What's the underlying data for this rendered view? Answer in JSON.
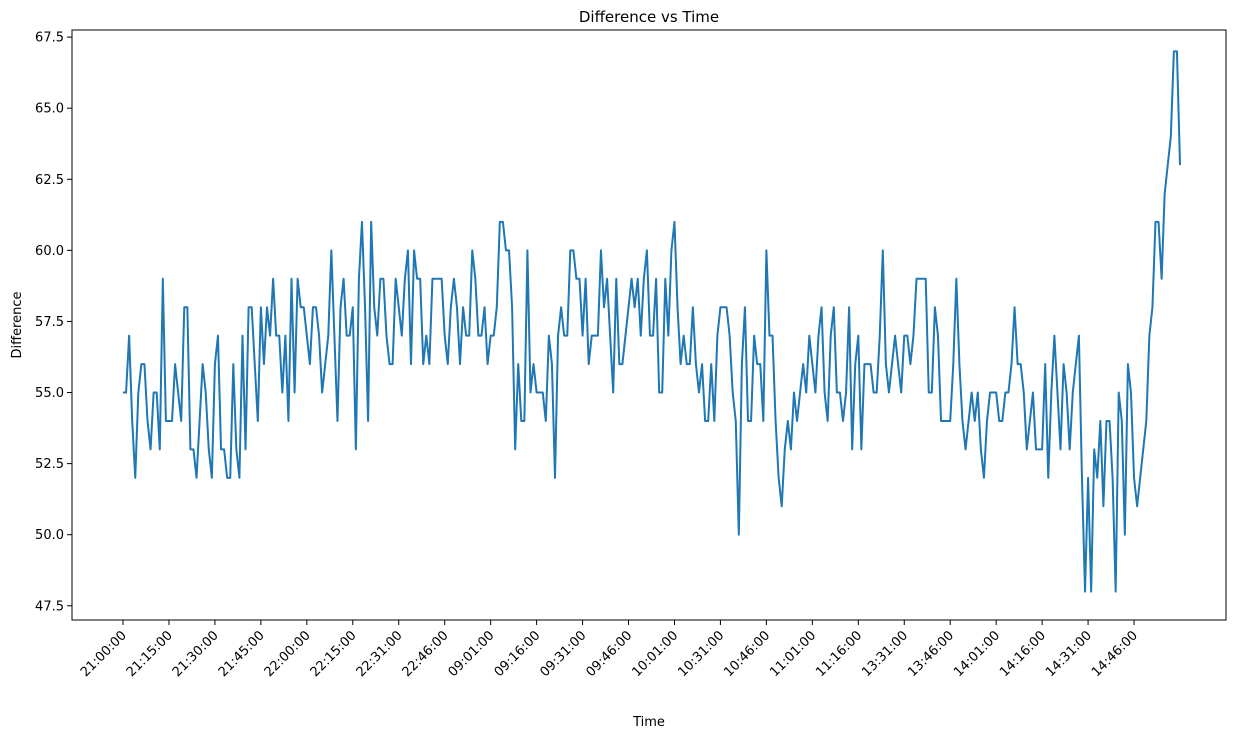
{
  "chart_data": {
    "type": "line",
    "title": "Difference vs Time",
    "xlabel": "Time",
    "ylabel": "Difference",
    "ylim": [
      47.0,
      67.75
    ],
    "y_ticks": [
      "47.5",
      "50.0",
      "52.5",
      "55.0",
      "57.5",
      "60.0",
      "62.5",
      "65.0",
      "67.5"
    ],
    "x_ticks": [
      "21:00:00",
      "21:15:00",
      "21:30:00",
      "21:45:00",
      "22:00:00",
      "22:15:00",
      "22:31:00",
      "22:46:00",
      "09:01:00",
      "09:16:00",
      "09:31:00",
      "09:46:00",
      "10:01:00",
      "10:31:00",
      "10:46:00",
      "11:01:00",
      "11:16:00",
      "13:31:00",
      "13:46:00",
      "14:01:00",
      "14:16:00",
      "14:31:00",
      "14:46:00"
    ],
    "x_tick_step": 15,
    "grid": false,
    "line_color": "#1f77b4",
    "series": [
      {
        "values": [
          55,
          55,
          57,
          54,
          52,
          55,
          56,
          56,
          54,
          53,
          55,
          55,
          53,
          59,
          54,
          54,
          54,
          56,
          55,
          54,
          58,
          58,
          53,
          53,
          52,
          54,
          56,
          55,
          53,
          52,
          56,
          57,
          53,
          53,
          52,
          52,
          56,
          53,
          52,
          57,
          53,
          58,
          58,
          56,
          54,
          58,
          56,
          58,
          57,
          59,
          57,
          57,
          55,
          57,
          54,
          59,
          55,
          59,
          58,
          58,
          57,
          56,
          58,
          58,
          57,
          55,
          56,
          57,
          60,
          57,
          54,
          58,
          59,
          57,
          57,
          58,
          53,
          59,
          61,
          58,
          54,
          61,
          58,
          57,
          59,
          59,
          57,
          56,
          56,
          59,
          58,
          57,
          59,
          60,
          56,
          60,
          59,
          59,
          56,
          57,
          56,
          59,
          59,
          59,
          59,
          57,
          56,
          58,
          59,
          58,
          56,
          58,
          57,
          57,
          60,
          59,
          57,
          57,
          58,
          56,
          57,
          57,
          58,
          61,
          61,
          60,
          60,
          58,
          53,
          56,
          54,
          54,
          60,
          55,
          56,
          55,
          55,
          55,
          54,
          57,
          56,
          52,
          57,
          58,
          57,
          57,
          60,
          60,
          59,
          59,
          57,
          59,
          56,
          57,
          57,
          57,
          60,
          58,
          59,
          57,
          55,
          59,
          56,
          56,
          57,
          58,
          59,
          58,
          59,
          57,
          59,
          60,
          57,
          57,
          59,
          55,
          55,
          59,
          57,
          60,
          61,
          58,
          56,
          57,
          56,
          56,
          58,
          56,
          55,
          56,
          54,
          54,
          56,
          54,
          57,
          58,
          58,
          58,
          57,
          55,
          54,
          50,
          56,
          58,
          54,
          54,
          57,
          56,
          56,
          54,
          60,
          57,
          57,
          54,
          52,
          51,
          53,
          54,
          53,
          55,
          54,
          55,
          56,
          55,
          57,
          56,
          55,
          57,
          58,
          55,
          54,
          57,
          58,
          55,
          55,
          54,
          55,
          58,
          53,
          56,
          57,
          53,
          56,
          56,
          56,
          55,
          55,
          57,
          60,
          56,
          55,
          56,
          57,
          56,
          55,
          57,
          57,
          56,
          57,
          59,
          59,
          59,
          59,
          55,
          55,
          58,
          57,
          54,
          54,
          54,
          54,
          56,
          59,
          56,
          54,
          53,
          54,
          55,
          54,
          55,
          53,
          52,
          54,
          55,
          55,
          55,
          54,
          54,
          55,
          55,
          56,
          58,
          56,
          56,
          55,
          53,
          54,
          55,
          53,
          53,
          53,
          56,
          52,
          55,
          57,
          55,
          53,
          56,
          55,
          53,
          55,
          56,
          57,
          52,
          48,
          52,
          48,
          53,
          52,
          54,
          51,
          54,
          54,
          52,
          48,
          55,
          54,
          50,
          56,
          55,
          52,
          51,
          52,
          53,
          54,
          57,
          58,
          61,
          61,
          59,
          62,
          63,
          64,
          67,
          67,
          63
        ]
      }
    ]
  }
}
